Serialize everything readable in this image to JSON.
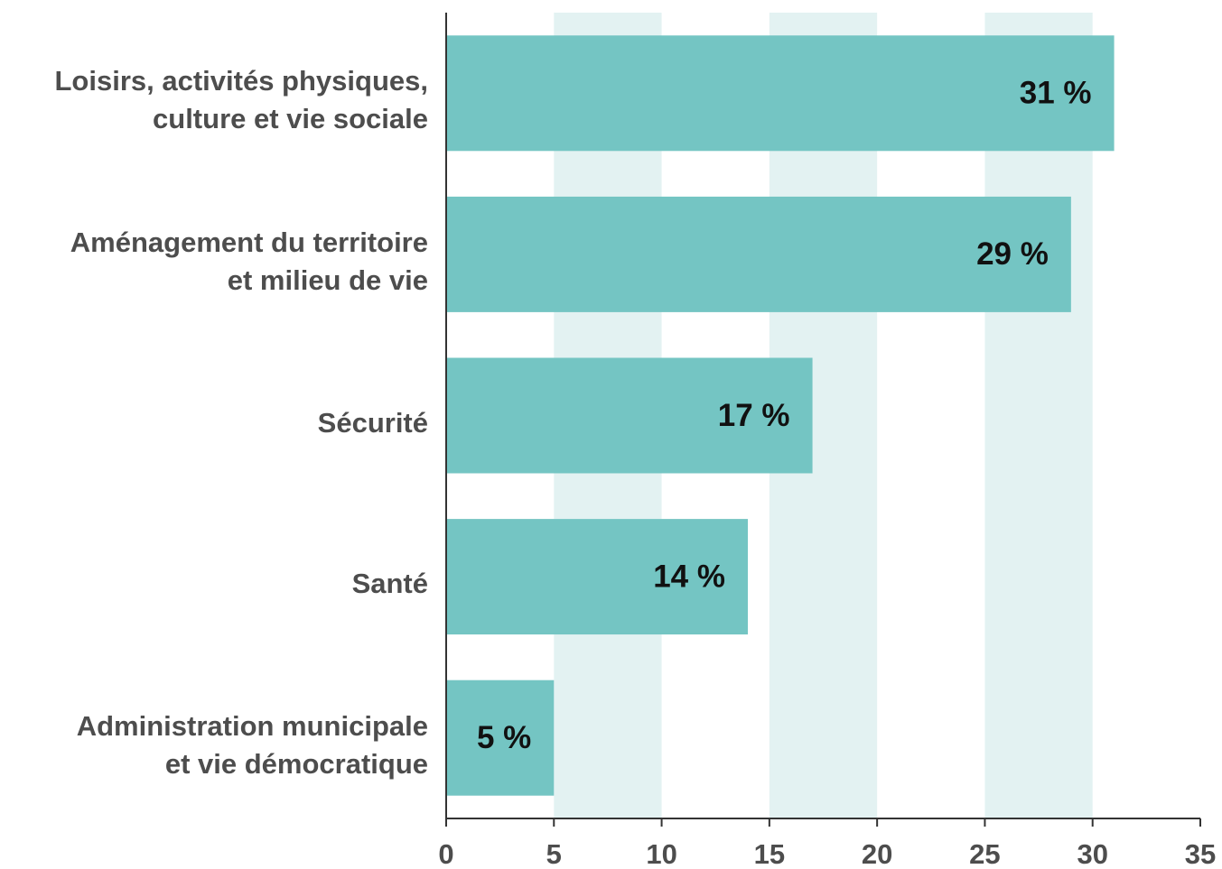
{
  "chart_data": {
    "type": "bar",
    "orientation": "horizontal",
    "categories": [
      "Loisirs, activités physiques,\nculture et vie sociale",
      "Aménagement du territoire\net milieu de vie",
      "Sécurité",
      "Santé",
      "Administration municipale\net vie démocratique"
    ],
    "values": [
      31,
      29,
      17,
      14,
      5
    ],
    "value_labels": [
      "31 %",
      "29 %",
      "17 %",
      "14 %",
      "5 %"
    ],
    "color": "#74c5c3",
    "xlim": [
      0,
      35
    ],
    "xticks": [
      0,
      5,
      10,
      15,
      20,
      25,
      30,
      35
    ],
    "grid": true,
    "grid_color": "#e3f2f2"
  }
}
